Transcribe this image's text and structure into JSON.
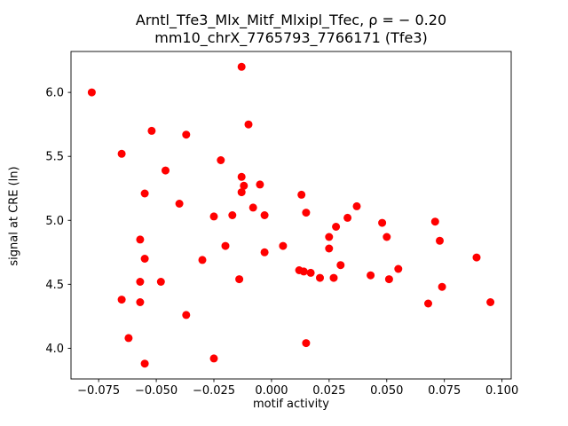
{
  "title": {
    "line1": "Arntl_Tfe3_Mlx_Mitf_Mlxipl_Tfec, ρ = − 0.20",
    "line2": "mm10_chrX_7765793_7766171 (Tfe3)"
  },
  "axes": {
    "xlabel": "motif activity",
    "ylabel": "signal at CRE (ln)"
  },
  "chart_data": {
    "type": "scatter",
    "title": "Arntl_Tfe3_Mlx_Mitf_Mlxipl_Tfec, ρ = − 0.20",
    "subtitle": "mm10_chrX_7765793_7766171 (Tfe3)",
    "xlabel": "motif activity",
    "ylabel": "signal at CRE (ln)",
    "marker_color": "#ff0000",
    "grid": false,
    "legend": "none",
    "xlim": [
      -0.087,
      0.104
    ],
    "ylim": [
      3.76,
      6.32
    ],
    "xticks": [
      -0.075,
      -0.05,
      -0.025,
      0.0,
      0.025,
      0.05,
      0.075,
      0.1
    ],
    "xtick_labels": [
      "−0.075",
      "−0.050",
      "−0.025",
      "0.000",
      "0.025",
      "0.050",
      "0.075",
      "0.100"
    ],
    "yticks": [
      4.0,
      4.5,
      5.0,
      5.5,
      6.0
    ],
    "ytick_labels": [
      "4.0",
      "4.5",
      "5.0",
      "5.5",
      "6.0"
    ],
    "points": [
      [
        -0.078,
        6.0
      ],
      [
        -0.013,
        6.2
      ],
      [
        -0.01,
        5.75
      ],
      [
        -0.052,
        5.7
      ],
      [
        -0.037,
        5.67
      ],
      [
        -0.065,
        5.52
      ],
      [
        -0.022,
        5.47
      ],
      [
        -0.046,
        5.39
      ],
      [
        -0.013,
        5.34
      ],
      [
        -0.055,
        5.21
      ],
      [
        -0.04,
        5.13
      ],
      [
        -0.012,
        5.27
      ],
      [
        -0.005,
        5.28
      ],
      [
        -0.013,
        5.22
      ],
      [
        0.013,
        5.2
      ],
      [
        -0.008,
        5.1
      ],
      [
        0.037,
        5.11
      ],
      [
        -0.025,
        5.03
      ],
      [
        -0.017,
        5.04
      ],
      [
        -0.003,
        5.04
      ],
      [
        0.015,
        5.06
      ],
      [
        0.028,
        4.95
      ],
      [
        0.033,
        5.02
      ],
      [
        0.048,
        4.98
      ],
      [
        0.071,
        4.99
      ],
      [
        -0.057,
        4.85
      ],
      [
        0.025,
        4.87
      ],
      [
        0.05,
        4.87
      ],
      [
        0.073,
        4.84
      ],
      [
        -0.055,
        4.7
      ],
      [
        -0.02,
        4.8
      ],
      [
        -0.003,
        4.75
      ],
      [
        0.005,
        4.8
      ],
      [
        0.025,
        4.78
      ],
      [
        0.089,
        4.71
      ],
      [
        -0.03,
        4.69
      ],
      [
        0.012,
        4.61
      ],
      [
        0.014,
        4.6
      ],
      [
        0.017,
        4.59
      ],
      [
        0.03,
        4.65
      ],
      [
        0.055,
        4.62
      ],
      [
        0.043,
        4.57
      ],
      [
        0.021,
        4.55
      ],
      [
        0.027,
        4.55
      ],
      [
        0.051,
        4.54
      ],
      [
        -0.014,
        4.54
      ],
      [
        -0.057,
        4.52
      ],
      [
        -0.048,
        4.52
      ],
      [
        -0.065,
        4.38
      ],
      [
        -0.057,
        4.36
      ],
      [
        0.068,
        4.35
      ],
      [
        0.095,
        4.36
      ],
      [
        0.074,
        4.48
      ],
      [
        -0.037,
        4.26
      ],
      [
        -0.062,
        4.08
      ],
      [
        0.015,
        4.04
      ],
      [
        -0.055,
        3.88
      ],
      [
        -0.025,
        3.92
      ]
    ]
  }
}
